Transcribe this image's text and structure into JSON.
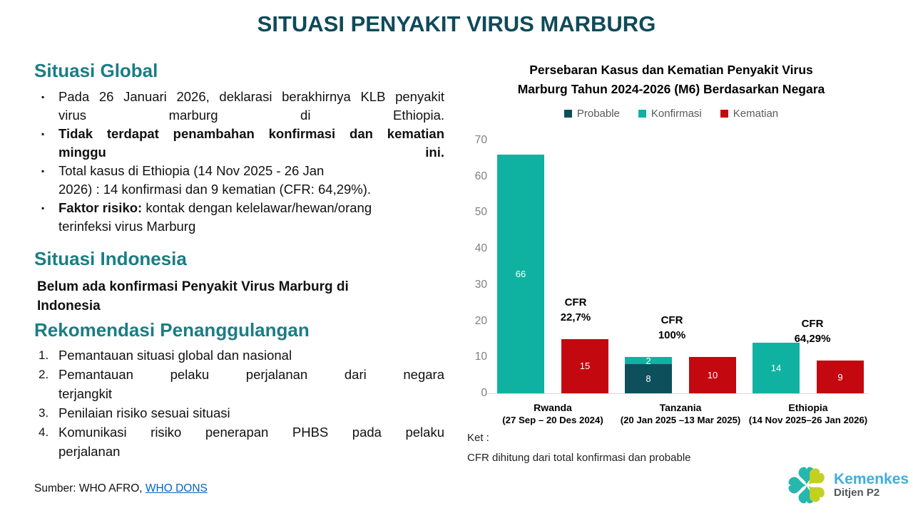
{
  "slide_title": "SITUASI PENYAKIT VIRUS MARBURG",
  "colors": {
    "title": "#0F4A59",
    "section_heading": "#1A7D85",
    "link": "#0563C1",
    "logo_teal": "#26B7AE",
    "logo_lime": "#C3D021"
  },
  "global_section": {
    "heading": "Situasi Global",
    "bullets": [
      {
        "bold": "",
        "text": "Pada 26 Januari 2026, deklarasi berakhirnya KLB penyakit\nvirus marburg di Ethiopia."
      },
      {
        "bold": "Tidak terdapat penambahan konfirmasi dan kematian\nminggu ini.",
        "text": ""
      },
      {
        "bold": "",
        "text": "Total kasus di Ethiopia (14 Nov 2025 - 26 Jan\n2026) : 14 konfirmasi dan 9 kematian (CFR: 64,29%)."
      },
      {
        "bold": "Faktor risiko:",
        "text": " kontak dengan kelelawar/hewan/orang\nterinfeksi virus Marburg"
      }
    ]
  },
  "indonesia_section": {
    "heading": "Situasi Indonesia",
    "statement": "Belum ada konfirmasi Penyakit Virus Marburg di\nIndonesia"
  },
  "recommendation_section": {
    "heading": "Rekomendasi Penanggulangan",
    "items": [
      "Pemantauan situasi global dan nasional",
      "Pemantauan pelaku perjalanan dari negara\nterjangkit",
      "Penilaian risiko sesuai situasi",
      "Komunikasi risiko penerapan PHBS pada pelaku\nperjalanan"
    ]
  },
  "source": {
    "prefix": "Sumber: WHO AFRO, ",
    "link_text": "WHO DONS"
  },
  "note": {
    "label": "Ket :",
    "text": "CFR dihitung dari total konfirmasi dan probable"
  },
  "logo": {
    "brand": "Kemenkes",
    "subtitle": "Ditjen P2"
  },
  "chart_data": {
    "type": "bar",
    "title": "Persebaran Kasus dan Kematian Penyakit Virus Marburg Tahun 2024-2026 (M6) Berdasarkan Negara",
    "title_lines": [
      "Persebaran Kasus dan Kematian Penyakit Virus",
      "Marburg Tahun 2024-2026 (M6) Berdasarkan Negara"
    ],
    "legend": [
      {
        "label": "Probable",
        "color": "#0E4F5C"
      },
      {
        "label": "Konfirmasi",
        "color": "#0FB2A1"
      },
      {
        "label": "Kematian",
        "color": "#C40810"
      }
    ],
    "ylim": [
      0,
      70
    ],
    "yticks": [
      0,
      10,
      20,
      30,
      40,
      50,
      60,
      70
    ],
    "grid": false,
    "legend_position": "top",
    "cfr_heading": "CFR",
    "groups": [
      {
        "country": "Rwanda",
        "period": "(27 Sep – 20 Des 2024)",
        "probable": 0,
        "konfirmasi": 66,
        "kematian": 15,
        "cfr": "22,7%"
      },
      {
        "country": "Tanzania",
        "period": "(20 Jan 2025 –13 Mar 2025)",
        "probable": 8,
        "konfirmasi": 2,
        "kematian": 10,
        "cfr": "100%"
      },
      {
        "country": "Ethiopia",
        "period": "(14 Nov 2025–26 Jan 2026)",
        "probable": 0,
        "konfirmasi": 14,
        "kematian": 9,
        "cfr": "64,29%"
      }
    ]
  }
}
